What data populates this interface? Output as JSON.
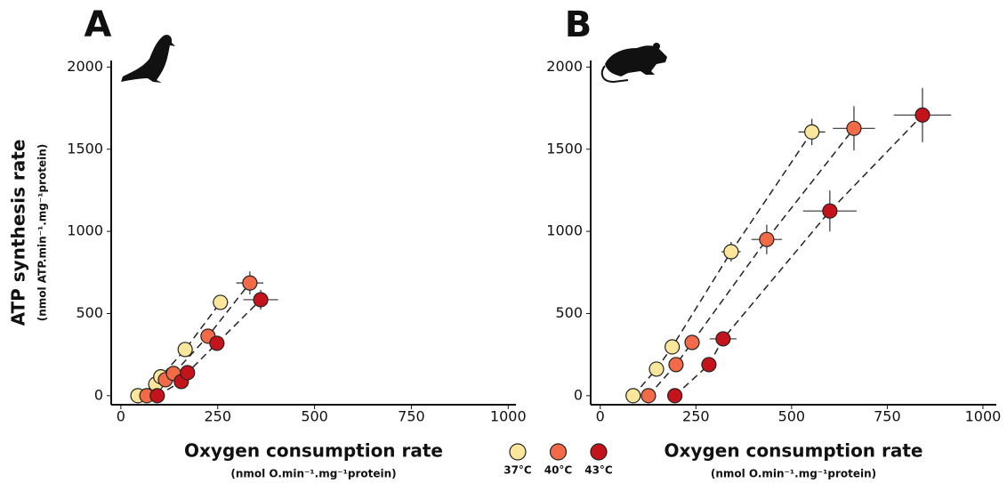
{
  "legend": [
    {
      "name": "37°C",
      "color": "#fbe79c"
    },
    {
      "name": "40°C",
      "color": "#f36a48"
    },
    {
      "name": "43°C",
      "color": "#c5131c"
    }
  ],
  "chart_data": [
    {
      "type": "scatter",
      "panel_label": "A",
      "ylabel": "ATP synthesis rate",
      "ylabel_sub": "(nmol ATP.min⁻¹.mg⁻¹protein)",
      "xlabel": "Oxygen consumption rate",
      "xlabel_sub": "(nmol O.min⁻¹.mg⁻¹protein)",
      "xlim": [
        -25,
        1020
      ],
      "ylim": [
        -55,
        2040
      ],
      "xticks": [
        0,
        250,
        500,
        750,
        1000
      ],
      "yticks": [
        0,
        500,
        1000,
        1500,
        2000
      ],
      "series": [
        {
          "color": "#fbe79c",
          "x": [
            44,
            90,
            103,
            166,
            257
          ],
          "values": [
            0,
            70,
            115,
            281,
            568
          ],
          "xerr": [
            null,
            null,
            null,
            null,
            null
          ],
          "yerr": [
            null,
            null,
            null,
            null,
            null
          ]
        },
        {
          "color": "#f36a48",
          "x": [
            67,
            115,
            136,
            225,
            333
          ],
          "values": [
            0,
            97,
            135,
            362,
            686
          ],
          "xerr": [
            null,
            null,
            null,
            null,
            35
          ],
          "yerr": [
            null,
            null,
            null,
            null,
            70
          ]
        },
        {
          "color": "#c5131c",
          "x": [
            94,
            156,
            172,
            248,
            361
          ],
          "values": [
            0,
            86,
            140,
            319,
            584
          ],
          "xerr": [
            null,
            null,
            null,
            null,
            45
          ],
          "yerr": [
            null,
            null,
            null,
            null,
            60
          ]
        }
      ]
    },
    {
      "type": "scatter",
      "panel_label": "B",
      "xlabel": "Oxygen consumption rate",
      "xlabel_sub": "(nmol O.min⁻¹.mg⁻¹protein)",
      "xlim": [
        -25,
        1035
      ],
      "ylim": [
        -55,
        2040
      ],
      "xticks": [
        0,
        250,
        500,
        750,
        1000
      ],
      "yticks": [
        0,
        500,
        1000,
        1500,
        2000
      ],
      "series": [
        {
          "color": "#fbe79c",
          "x": [
            86,
            147,
            188,
            342,
            553
          ],
          "values": [
            0,
            162,
            297,
            876,
            1605
          ],
          "xerr": [
            null,
            null,
            null,
            25,
            35
          ],
          "yerr": [
            null,
            null,
            null,
            60,
            80
          ]
        },
        {
          "color": "#f36a48",
          "x": [
            126,
            198,
            240,
            435,
            663
          ],
          "values": [
            0,
            189,
            324,
            951,
            1627
          ],
          "xerr": [
            null,
            null,
            null,
            40,
            55
          ],
          "yerr": [
            null,
            null,
            null,
            90,
            135
          ]
        },
        {
          "color": "#c5131c",
          "x": [
            195,
            284,
            321,
            600,
            842
          ],
          "values": [
            0,
            189,
            346,
            1124,
            1708
          ],
          "xerr": [
            null,
            20,
            35,
            70,
            75
          ],
          "yerr": [
            null,
            15,
            30,
            125,
            165
          ]
        }
      ]
    }
  ]
}
